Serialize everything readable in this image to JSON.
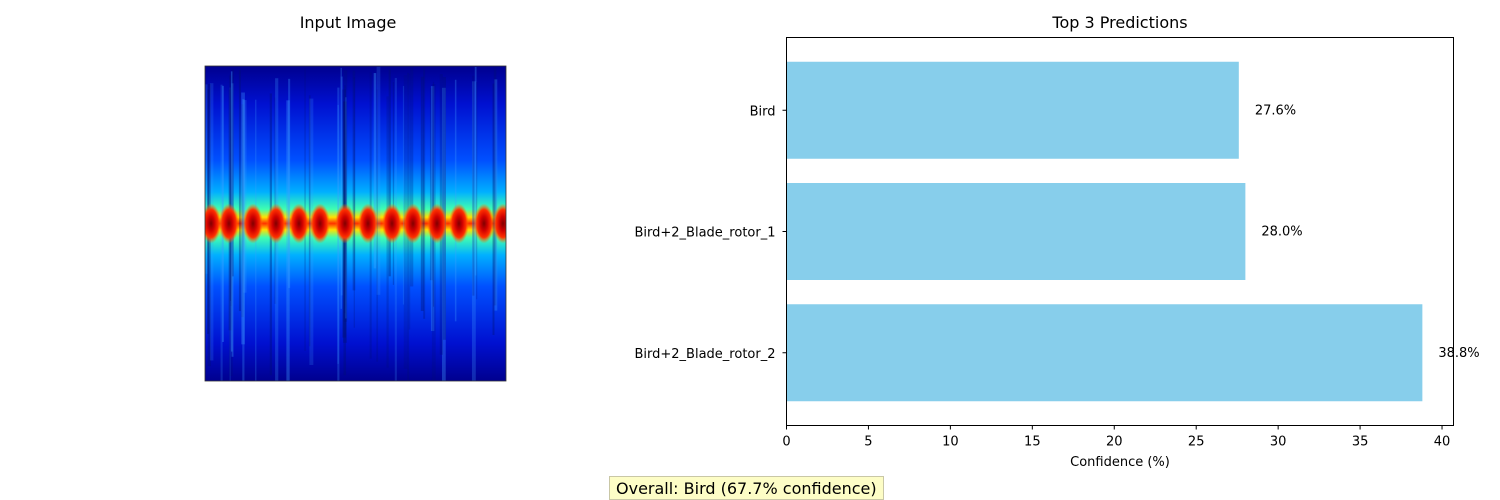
{
  "input_panel": {
    "title": "Input Image",
    "image_icon": "spectrogram-heatmap",
    "colormap": [
      "#00008f",
      "#0000ff",
      "#00ffff",
      "#ffff00",
      "#ff0000",
      "#800000"
    ]
  },
  "chart_data": {
    "type": "bar",
    "orientation": "horizontal",
    "title": "Top 3 Predictions",
    "xlabel": "Confidence (%)",
    "ylabel": "",
    "categories": [
      "Bird",
      "Bird+2_Blade_rotor_1",
      "Bird+2_Blade_rotor_2"
    ],
    "values": [
      27.6,
      28.0,
      38.8
    ],
    "data_labels": [
      "27.6%",
      "28.0%",
      "38.8%"
    ],
    "xlim": [
      0,
      40.7
    ],
    "xticks": [
      0,
      5,
      10,
      15,
      20,
      25,
      30,
      35,
      40
    ],
    "xtick_labels": [
      "0",
      "5",
      "10",
      "15",
      "20",
      "25",
      "30",
      "35",
      "40"
    ],
    "bar_color": "#87ceeb",
    "grid": false,
    "legend": "none"
  },
  "overall": {
    "text": "Overall: Bird (67.7% confidence)",
    "background": "#fdfdc6"
  }
}
